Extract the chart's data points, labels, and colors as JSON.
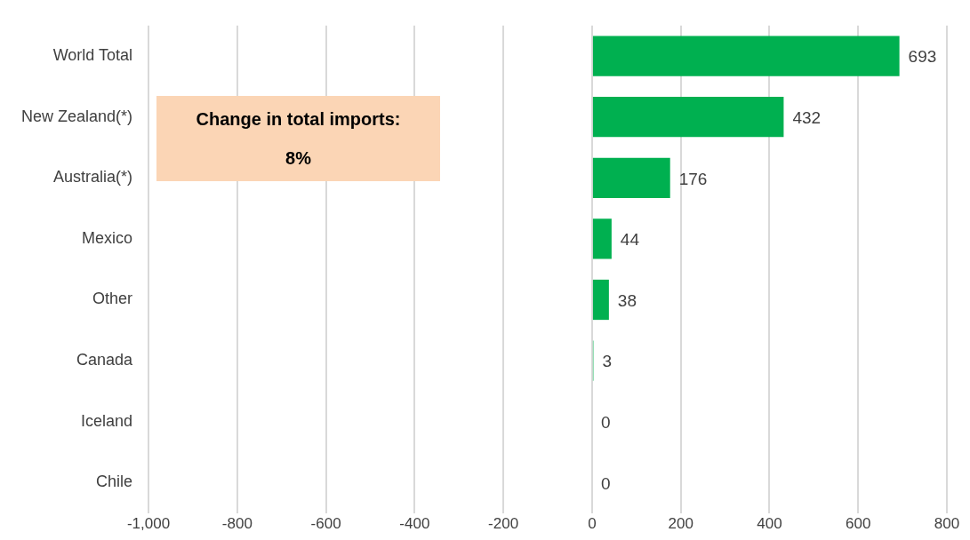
{
  "chart_data": {
    "type": "bar",
    "orientation": "horizontal",
    "categories": [
      "World Total",
      "New Zealand(*)",
      "Australia(*)",
      "Mexico",
      "Other",
      "Canada",
      "Iceland",
      "Chile"
    ],
    "values": [
      693,
      432,
      176,
      44,
      38,
      3,
      0,
      0
    ],
    "color": "#00b050",
    "xlim": [
      -1000,
      800
    ],
    "xticks": [
      {
        "value": -1000,
        "label": "-1,000"
      },
      -800,
      -600,
      -400,
      -200,
      0,
      200,
      400,
      600,
      800
    ],
    "grid": "x",
    "legend": false,
    "data_labels": true,
    "annotations": [
      "Change in total imports:",
      "8%"
    ]
  }
}
